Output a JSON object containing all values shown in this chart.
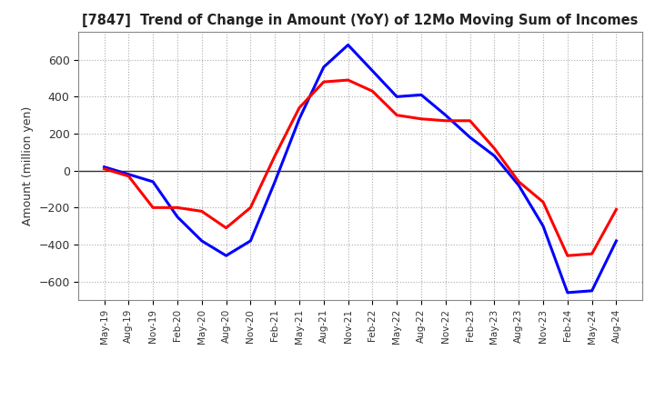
{
  "title": "[7847]  Trend of Change in Amount (YoY) of 12Mo Moving Sum of Incomes",
  "ylabel": "Amount (million yen)",
  "ylim": [
    -700,
    750
  ],
  "yticks": [
    -600,
    -400,
    -200,
    0,
    200,
    400,
    600
  ],
  "background_color": "#ffffff",
  "grid_color": "#aaaaaa",
  "line1_color": "#0000ff",
  "line2_color": "#ff0000",
  "x_labels": [
    "May-19",
    "Aug-19",
    "Nov-19",
    "Feb-20",
    "May-20",
    "Aug-20",
    "Nov-20",
    "Feb-21",
    "May-21",
    "Aug-21",
    "Nov-21",
    "Feb-22",
    "May-22",
    "Aug-22",
    "Nov-22",
    "Feb-23",
    "May-23",
    "Aug-23",
    "Nov-23",
    "Feb-24",
    "May-24",
    "Aug-24"
  ],
  "ordinary_income": [
    20,
    -20,
    -60,
    -250,
    -380,
    -460,
    -380,
    -60,
    280,
    560,
    680,
    540,
    400,
    410,
    300,
    180,
    80,
    -80,
    -300,
    -660,
    -650,
    -380
  ],
  "net_income": [
    10,
    -30,
    -200,
    -200,
    -220,
    -310,
    -200,
    80,
    340,
    480,
    490,
    430,
    300,
    280,
    270,
    270,
    120,
    -60,
    -170,
    -460,
    -450,
    -210
  ]
}
